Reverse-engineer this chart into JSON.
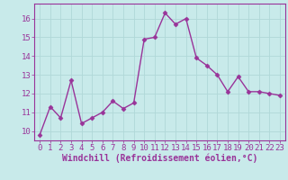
{
  "x": [
    0,
    1,
    2,
    3,
    4,
    5,
    6,
    7,
    8,
    9,
    10,
    11,
    12,
    13,
    14,
    15,
    16,
    17,
    18,
    19,
    20,
    21,
    22,
    23
  ],
  "y": [
    9.8,
    11.3,
    10.7,
    12.7,
    10.4,
    10.7,
    11.0,
    11.6,
    11.2,
    11.5,
    14.9,
    15.0,
    16.3,
    15.7,
    16.0,
    13.9,
    13.5,
    13.0,
    12.1,
    12.9,
    12.1,
    12.1,
    12.0,
    11.9
  ],
  "line_color": "#993399",
  "marker": "D",
  "marker_size": 2.5,
  "linewidth": 1.0,
  "xlabel": "Windchill (Refroidissement éolien,°C)",
  "xlabel_fontsize": 7,
  "ylim": [
    9.5,
    16.8
  ],
  "xlim": [
    -0.5,
    23.5
  ],
  "yticks": [
    10,
    11,
    12,
    13,
    14,
    15,
    16
  ],
  "xticks": [
    0,
    1,
    2,
    3,
    4,
    5,
    6,
    7,
    8,
    9,
    10,
    11,
    12,
    13,
    14,
    15,
    16,
    17,
    18,
    19,
    20,
    21,
    22,
    23
  ],
  "bg_color": "#c8eaea",
  "grid_color": "#b0d8d8",
  "tick_fontsize": 6.5,
  "tick_color": "#993399",
  "xlabel_color": "#993399",
  "spine_color": "#993399"
}
